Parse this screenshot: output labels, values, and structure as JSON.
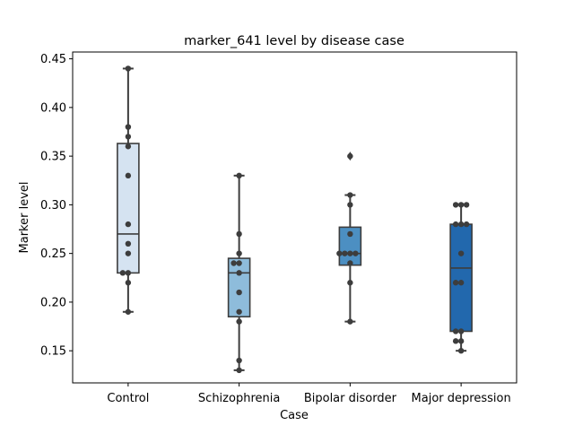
{
  "chart_data": {
    "type": "box",
    "title": "marker_641 level by disease case",
    "xlabel": "Case",
    "ylabel": "Marker level",
    "ylim": [
      0.117,
      0.457
    ],
    "yticks": [
      0.15,
      0.2,
      0.25,
      0.3,
      0.35,
      0.4,
      0.45
    ],
    "ytick_labels": [
      "0.15",
      "0.20",
      "0.25",
      "0.30",
      "0.35",
      "0.40",
      "0.45"
    ],
    "grid": false,
    "categories": [
      "Control",
      "Schizophrenia",
      "Bipolar disorder",
      "Major depression"
    ],
    "colors": [
      "#d5e3f1",
      "#8ebcdb",
      "#4c8fc2",
      "#2268ad"
    ],
    "boxes": [
      {
        "category": "Control",
        "q1": 0.23,
        "median": 0.27,
        "q3": 0.363,
        "whisker_low": 0.19,
        "whisker_high": 0.44,
        "outliers": []
      },
      {
        "category": "Schizophrenia",
        "q1": 0.185,
        "median": 0.23,
        "q3": 0.245,
        "whisker_low": 0.13,
        "whisker_high": 0.33,
        "outliers": []
      },
      {
        "category": "Bipolar disorder",
        "q1": 0.238,
        "median": 0.25,
        "q3": 0.277,
        "whisker_low": 0.18,
        "whisker_high": 0.31,
        "outliers": [
          0.35
        ]
      },
      {
        "category": "Major depression",
        "q1": 0.17,
        "median": 0.235,
        "q3": 0.28,
        "whisker_low": 0.15,
        "whisker_high": 0.3,
        "outliers": []
      }
    ],
    "points": [
      {
        "category": "Control",
        "values": [
          0.44,
          0.38,
          0.37,
          0.36,
          0.33,
          0.28,
          0.26,
          0.25,
          0.23,
          0.23,
          0.22,
          0.19
        ]
      },
      {
        "category": "Schizophrenia",
        "values": [
          0.33,
          0.27,
          0.25,
          0.24,
          0.24,
          0.23,
          0.21,
          0.19,
          0.18,
          0.14,
          0.13
        ]
      },
      {
        "category": "Bipolar disorder",
        "values": [
          0.35,
          0.31,
          0.3,
          0.27,
          0.25,
          0.25,
          0.25,
          0.25,
          0.24,
          0.22,
          0.18
        ]
      },
      {
        "category": "Major depression",
        "values": [
          0.3,
          0.3,
          0.3,
          0.28,
          0.28,
          0.28,
          0.25,
          0.22,
          0.22,
          0.17,
          0.17,
          0.16,
          0.16,
          0.15
        ]
      }
    ]
  }
}
